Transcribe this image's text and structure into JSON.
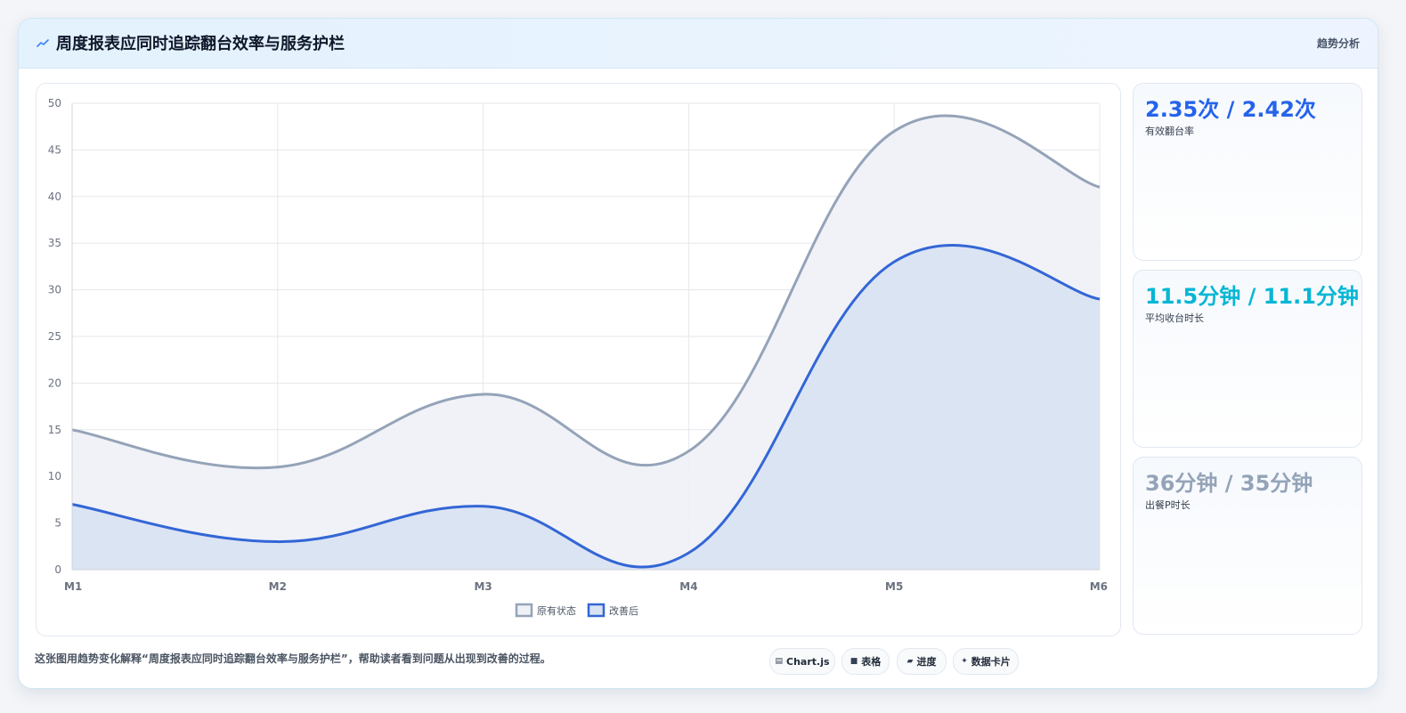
{
  "header": {
    "title": "周度报表应同时追踪翻台效率与服务护栏",
    "tag": "趋势分析"
  },
  "stats": [
    {
      "value": "2.35次 / 2.42次",
      "label": "有效翻台率",
      "color": "#2563eb"
    },
    {
      "value": "11.5分钟 / 11.1分钟",
      "label": "平均收台时长",
      "color": "#06b6d4"
    },
    {
      "value": "36分钟 / 35分钟",
      "label": "出餐P时长",
      "color": "#94a3b8"
    }
  ],
  "caption": "这张图用趋势变化解释“周度报表应同时追踪翻台效率与服务护栏”，帮助读者看到问题从出现到改善的过程。",
  "chips": [
    {
      "icon": "chart-icon",
      "glyph": "▤",
      "label": "Chart.js"
    },
    {
      "icon": "table-icon",
      "glyph": "■",
      "label": "表格"
    },
    {
      "icon": "progress-icon",
      "glyph": "▰",
      "label": "进度"
    },
    {
      "icon": "card-icon",
      "glyph": "✦",
      "label": "数据卡片"
    }
  ],
  "chart_data": {
    "type": "area",
    "categories": [
      "M1",
      "M2",
      "M3",
      "M4",
      "M5",
      "M6"
    ],
    "ylim": [
      0,
      50
    ],
    "yticks": [
      0,
      5,
      10,
      15,
      20,
      25,
      30,
      35,
      40,
      45,
      50
    ],
    "grid": true,
    "legend_position": "bottom",
    "series": [
      {
        "name": "原有状态",
        "values": [
          15,
          11,
          18.8,
          12.7,
          47,
          41
        ],
        "color": "#94a3b8",
        "fill": "#eef1f6"
      },
      {
        "name": "改善后",
        "values": [
          7,
          3,
          6.8,
          1.8,
          33,
          29
        ],
        "color": "#3366d6",
        "fill": "#d8e2f2"
      }
    ]
  }
}
